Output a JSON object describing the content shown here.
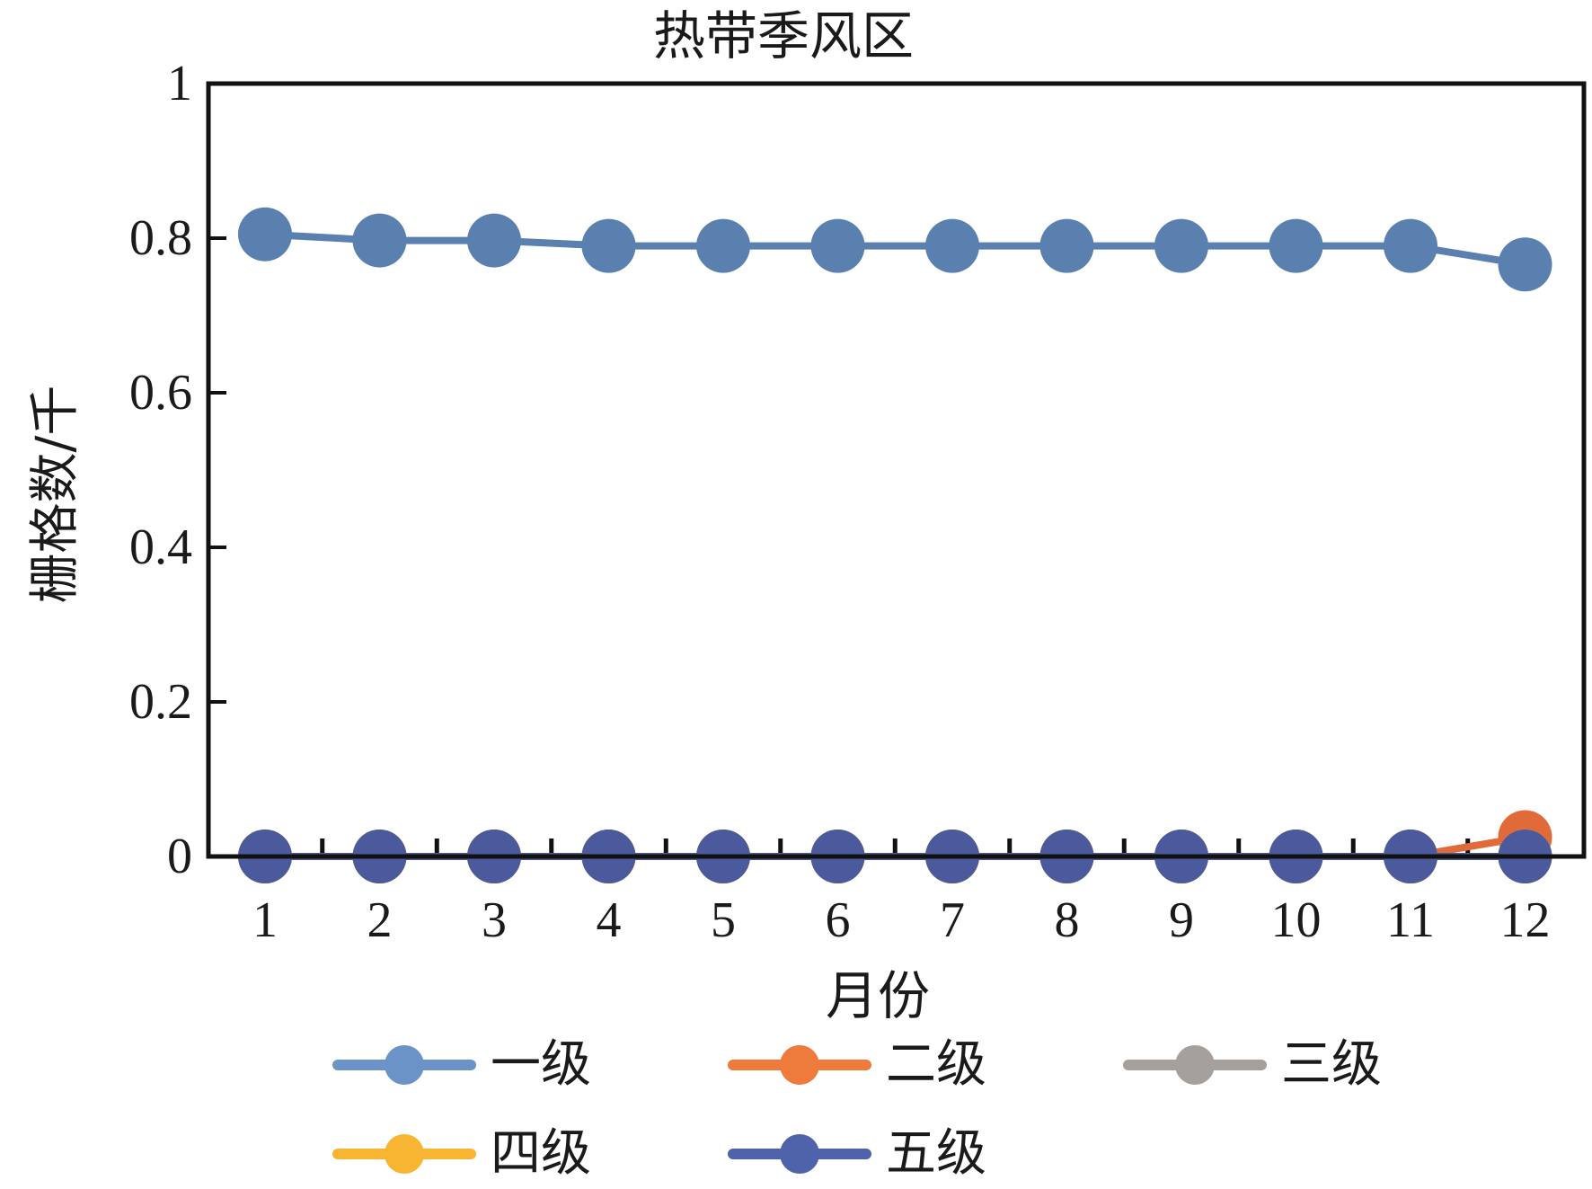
{
  "chart_data": {
    "type": "line",
    "title": "热带季风区",
    "xlabel": "月份",
    "ylabel": "栅格数/千",
    "categories": [
      "1",
      "2",
      "3",
      "4",
      "5",
      "6",
      "7",
      "8",
      "9",
      "10",
      "11",
      "12"
    ],
    "ylim": [
      0,
      1
    ],
    "yticks": [
      0,
      0.2,
      0.4,
      0.6,
      0.8,
      1
    ],
    "ytick_labels": [
      "0",
      "0.2",
      "0.4",
      "0.6",
      "0.8",
      "1"
    ],
    "grid": false,
    "legend_position": "bottom",
    "series": [
      {
        "name": "一级",
        "color": "#5a80b0",
        "legend_color": "#6b93c8",
        "values": [
          0.805,
          0.797,
          0.797,
          0.79,
          0.79,
          0.79,
          0.79,
          0.79,
          0.79,
          0.79,
          0.79,
          0.766
        ]
      },
      {
        "name": "二级",
        "color": "#e06b38",
        "legend_color": "#ee7a3c",
        "values": [
          0,
          0,
          0,
          0,
          0,
          0,
          0,
          0,
          0,
          0,
          0,
          0.025
        ]
      },
      {
        "name": "三级",
        "color": "#a09a96",
        "legend_color": "#a6a09c",
        "values": [
          0,
          0,
          0,
          0,
          0,
          0,
          0,
          0,
          0,
          0,
          0,
          0
        ]
      },
      {
        "name": "四级",
        "color": "#f5b431",
        "legend_color": "#f8b532",
        "values": [
          0,
          0,
          0,
          0,
          0,
          0,
          0,
          0,
          0,
          0,
          0,
          0
        ]
      },
      {
        "name": "五级",
        "color": "#4a5a9c",
        "legend_color": "#4f63aa",
        "values": [
          0,
          0,
          0,
          0,
          0,
          0,
          0,
          0,
          0,
          0,
          0,
          0
        ]
      }
    ]
  }
}
